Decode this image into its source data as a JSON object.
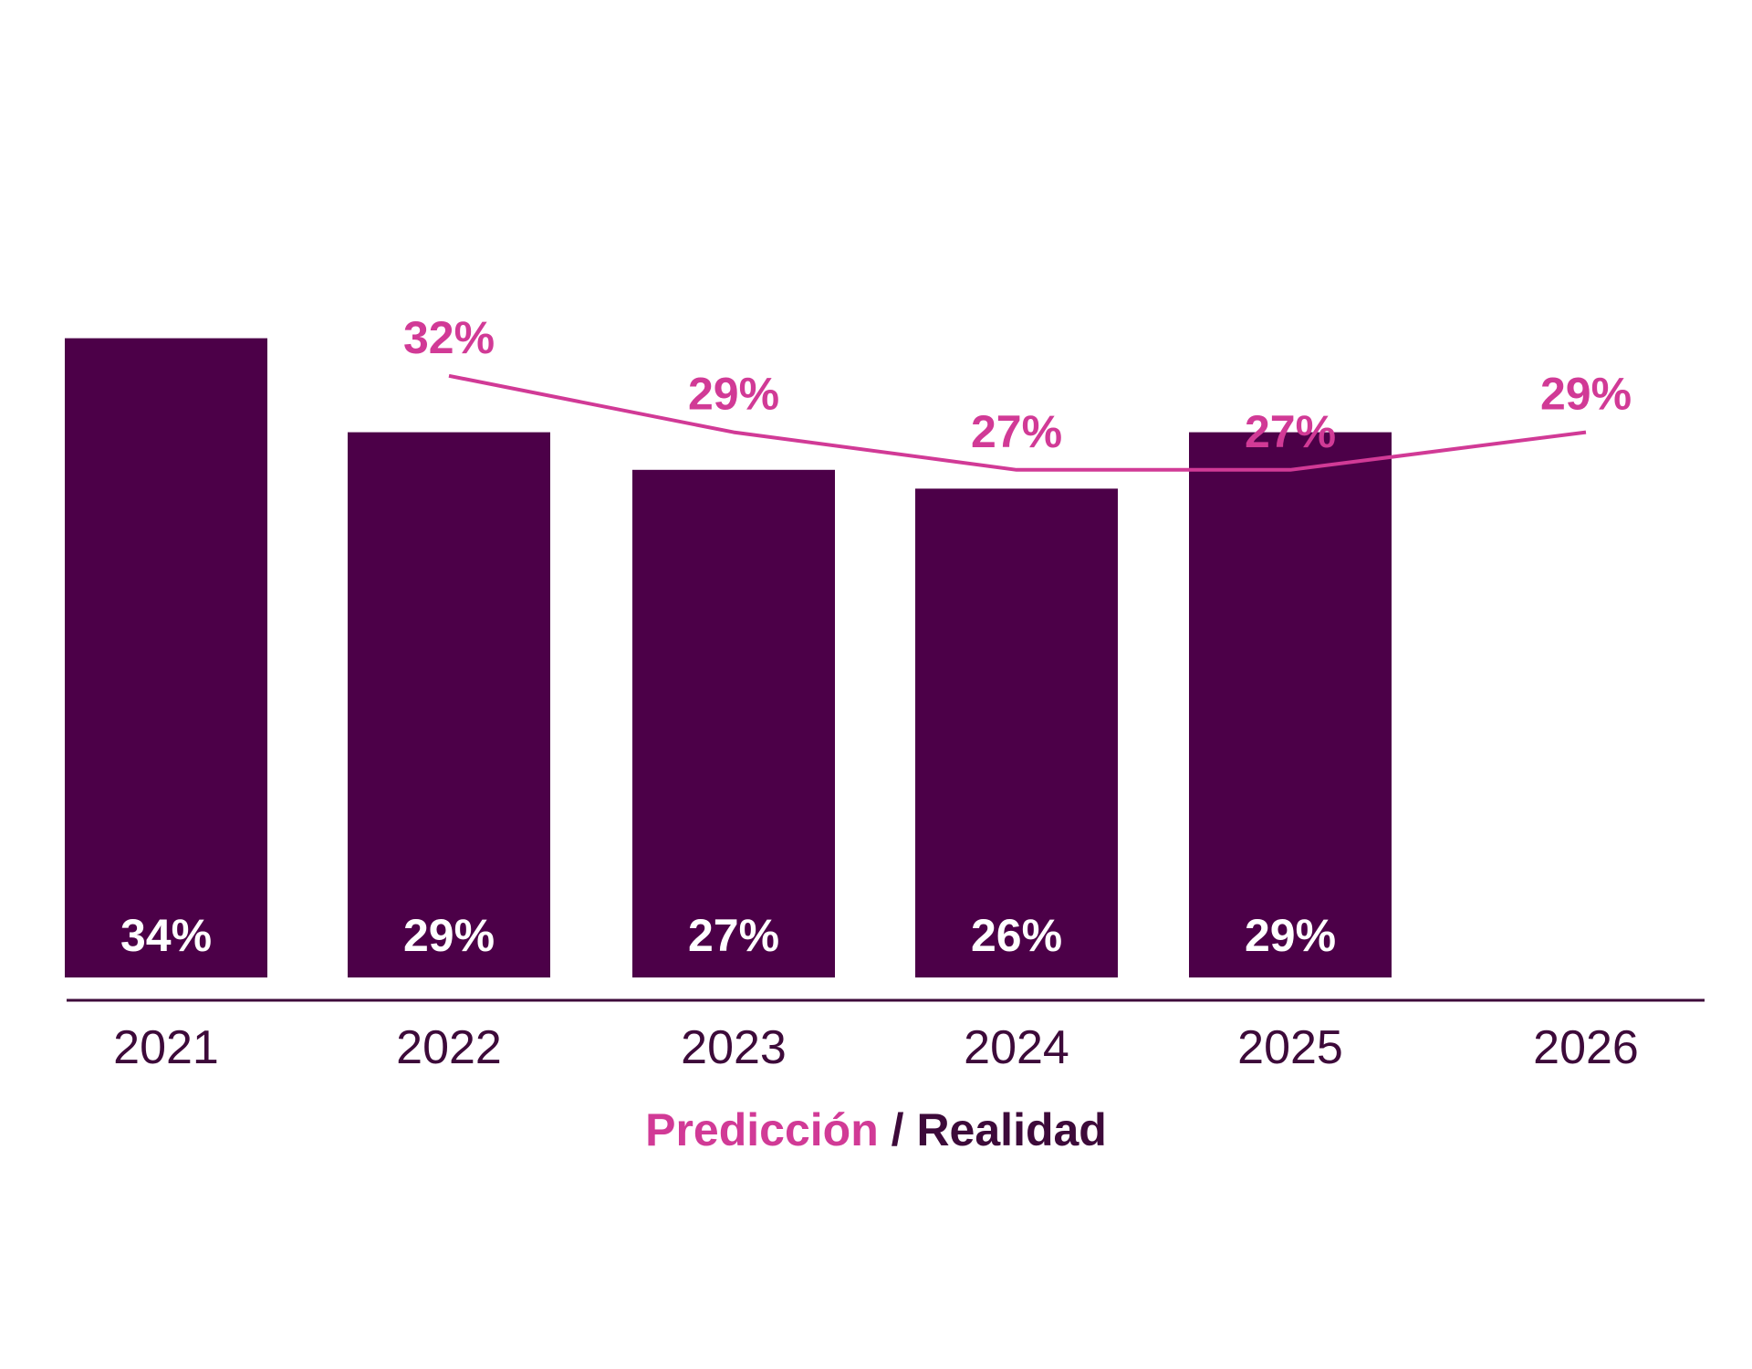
{
  "chart_data": {
    "type": "bar",
    "categories": [
      "2021",
      "2022",
      "2023",
      "2024",
      "2025",
      "2026"
    ],
    "series": [
      {
        "name": "Realidad",
        "kind": "bar",
        "values": [
          34,
          29,
          27,
          26,
          29,
          null
        ],
        "labels": [
          "34%",
          "29%",
          "27%",
          "26%",
          "29%",
          ""
        ]
      },
      {
        "name": "Predicción",
        "kind": "line",
        "values": [
          null,
          32,
          29,
          27,
          27,
          29
        ],
        "labels": [
          "",
          "32%",
          "29%",
          "27%",
          "27%",
          "29%"
        ]
      }
    ],
    "title": "",
    "xlabel": "",
    "ylabel": "",
    "grid": false,
    "legend": {
      "position": "bottom-center",
      "prediction_label": "Predicción",
      "separator": " / ",
      "reality_label": "Realidad"
    },
    "colors": {
      "bar": "#4c0048",
      "line": "#d13a96",
      "axis": "#3d0a3a",
      "tick_text": "#3d0a3a",
      "bar_text": "#ffffff"
    }
  }
}
